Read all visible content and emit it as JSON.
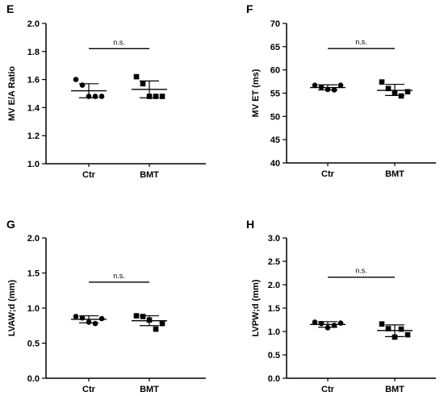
{
  "chart_data": [
    {
      "type": "scatter",
      "panel": "E",
      "ylabel": "MV E/A Ratio",
      "ylim": [
        1.0,
        2.0
      ],
      "yticks": [
        "1.0",
        "1.2",
        "1.4",
        "1.6",
        "1.8",
        "2.0"
      ],
      "categories": [
        "Ctr",
        "BMT"
      ],
      "groups": [
        {
          "category": "Ctr",
          "marker": "circle",
          "points": [
            1.6,
            1.56,
            1.48,
            1.48,
            1.48
          ],
          "mean": 1.52,
          "sd_low": 1.47,
          "sd_high": 1.57
        },
        {
          "category": "BMT",
          "marker": "square",
          "points": [
            1.62,
            1.57,
            1.48,
            1.48,
            1.48
          ],
          "mean": 1.53,
          "sd_low": 1.47,
          "sd_high": 1.59
        }
      ],
      "significance": "n.s."
    },
    {
      "type": "scatter",
      "panel": "F",
      "ylabel": "MV ET (ms)",
      "ylim": [
        40,
        70
      ],
      "yticks": [
        "40",
        "45",
        "50",
        "55",
        "60",
        "65",
        "70"
      ],
      "categories": [
        "Ctr",
        "BMT"
      ],
      "groups": [
        {
          "category": "Ctr",
          "marker": "circle",
          "points": [
            56.7,
            56.3,
            55.8,
            55.7,
            56.7
          ],
          "mean": 56.2,
          "sd_low": 55.7,
          "sd_high": 56.8
        },
        {
          "category": "BMT",
          "marker": "square",
          "points": [
            57.4,
            56.0,
            55.0,
            54.4,
            55.3
          ],
          "mean": 55.6,
          "sd_low": 54.5,
          "sd_high": 56.9
        }
      ],
      "significance": "n.s."
    },
    {
      "type": "scatter",
      "panel": "G",
      "ylabel": "LVAW;d (mm)",
      "ylim": [
        0.0,
        2.0
      ],
      "yticks": [
        "0.0",
        "0.5",
        "1.0",
        "1.5",
        "2.0"
      ],
      "categories": [
        "Ctr",
        "BMT"
      ],
      "groups": [
        {
          "category": "Ctr",
          "marker": "circle",
          "points": [
            0.88,
            0.86,
            0.8,
            0.78,
            0.85
          ],
          "mean": 0.84,
          "sd_low": 0.79,
          "sd_high": 0.89
        },
        {
          "category": "BMT",
          "marker": "square",
          "points": [
            0.89,
            0.88,
            0.83,
            0.7,
            0.78
          ],
          "mean": 0.82,
          "sd_low": 0.75,
          "sd_high": 0.89
        }
      ],
      "significance": "n.s."
    },
    {
      "type": "scatter",
      "panel": "H",
      "ylabel": "LVPW;d (mm)",
      "ylim": [
        0.0,
        3.0
      ],
      "yticks": [
        "0.0",
        "0.5",
        "1.0",
        "1.5",
        "2.0",
        "2.5",
        "3.0"
      ],
      "categories": [
        "Ctr",
        "BMT"
      ],
      "groups": [
        {
          "category": "Ctr",
          "marker": "circle",
          "points": [
            1.2,
            1.17,
            1.08,
            1.13,
            1.18
          ],
          "mean": 1.15,
          "sd_low": 1.09,
          "sd_high": 1.21
        },
        {
          "category": "BMT",
          "marker": "square",
          "points": [
            1.16,
            1.06,
            0.88,
            1.05,
            0.93
          ],
          "mean": 1.02,
          "sd_low": 0.89,
          "sd_high": 1.14
        }
      ],
      "significance": "n.s."
    }
  ]
}
